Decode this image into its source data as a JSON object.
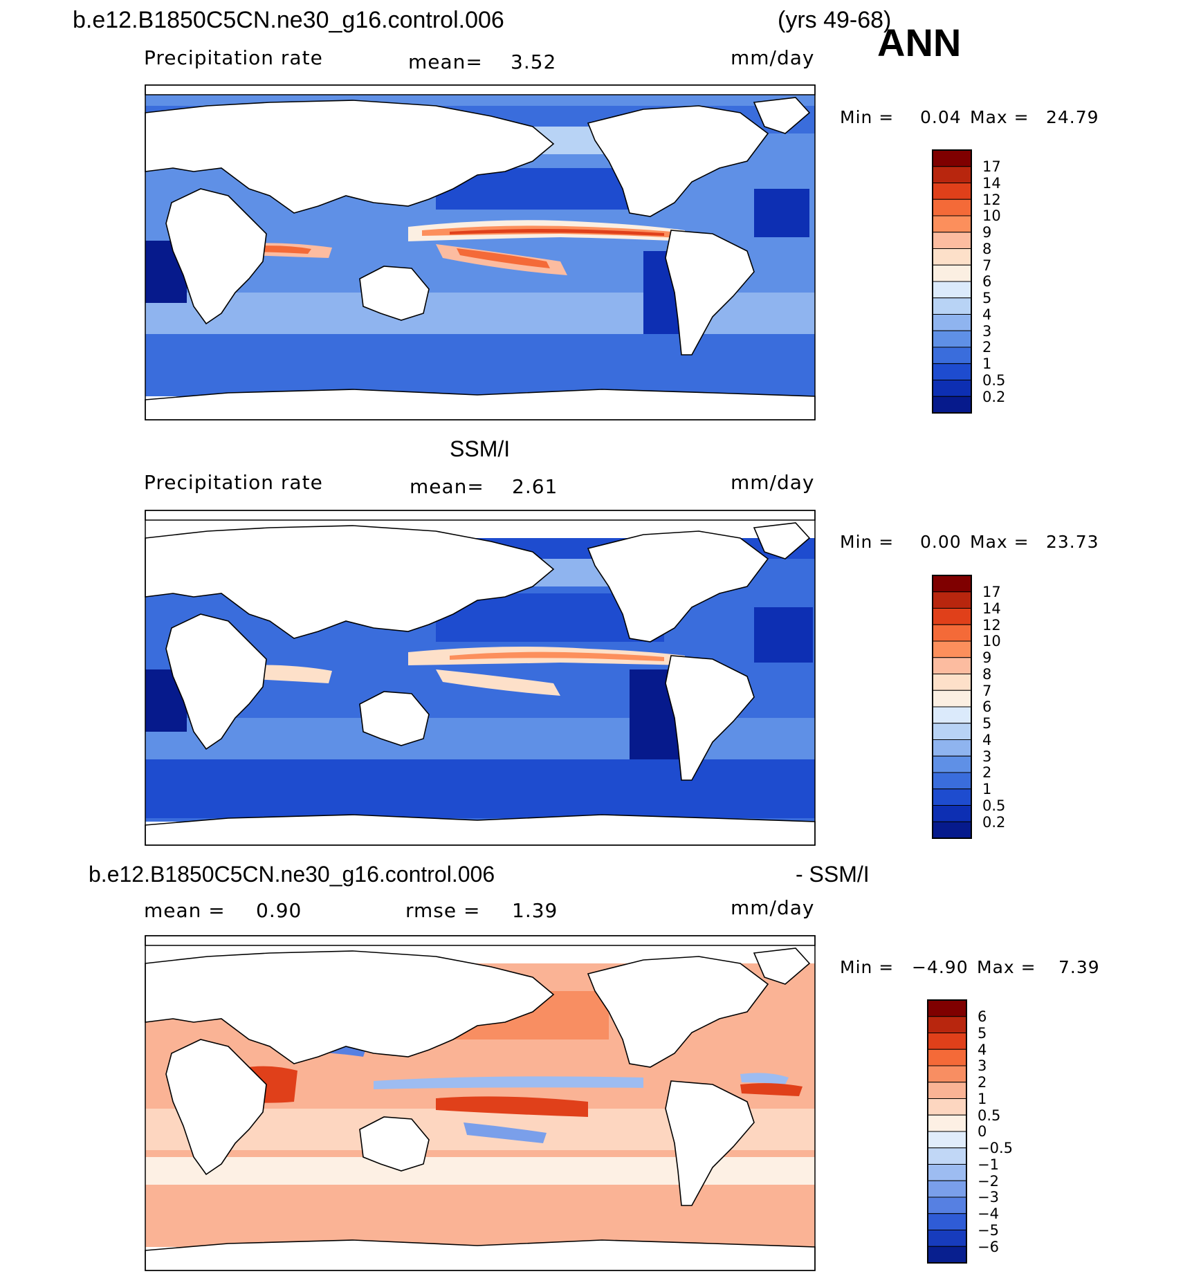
{
  "header": {
    "case_name": "b.e12.B1850C5CN.ne30_g16.control.006",
    "years": "(yrs 49-68)",
    "season": "ANN"
  },
  "panels": [
    {
      "field": "Precipitation rate",
      "stat_label": "mean=",
      "stat_value": "3.52",
      "units": "mm/day",
      "min_label": "Min =",
      "min_value": "0.04",
      "max_label": "Max =",
      "max_value": "24.79"
    },
    {
      "title": "SSM/I",
      "field": "Precipitation rate",
      "stat_label": "mean=",
      "stat_value": "2.61",
      "units": "mm/day",
      "min_label": "Min =",
      "min_value": "0.00",
      "max_label": "Max =",
      "max_value": "23.73"
    },
    {
      "title_left": "b.e12.B1850C5CN.ne30_g16.control.006",
      "title_right": "- SSM/I",
      "stat_label": "mean =",
      "stat_value": "0.90",
      "stat2_label": "rmse =",
      "stat2_value": "1.39",
      "units": "mm/day",
      "min_label": "Min =",
      "min_value": "−4.90",
      "max_label": "Max =",
      "max_value": "7.39"
    }
  ],
  "chart_data": [
    {
      "type": "heatmap",
      "title": "b.e12.B1850C5CN.ne30_g16.control.006 Precipitation rate (yrs 49-68) ANN",
      "units": "mm/day",
      "mean": 3.52,
      "min": 0.04,
      "max": 24.79,
      "colorbar_levels": [
        "17",
        "14",
        "12",
        "10",
        "9",
        "8",
        "7",
        "6",
        "5",
        "4",
        "3",
        "2",
        "1",
        "0.5",
        "0.2"
      ]
    },
    {
      "type": "heatmap",
      "title": "SSM/I Precipitation rate",
      "units": "mm/day",
      "mean": 2.61,
      "min": 0.0,
      "max": 23.73,
      "colorbar_levels": [
        "17",
        "14",
        "12",
        "10",
        "9",
        "8",
        "7",
        "6",
        "5",
        "4",
        "3",
        "2",
        "1",
        "0.5",
        "0.2"
      ]
    },
    {
      "type": "heatmap",
      "title": "b.e12.B1850C5CN.ne30_g16.control.006 - SSM/I",
      "units": "mm/day",
      "mean": 0.9,
      "rmse": 1.39,
      "min": -4.9,
      "max": 7.39,
      "colorbar_levels": [
        "6",
        "5",
        "4",
        "3",
        "2",
        "1",
        "0.5",
        "0",
        "−0.5",
        "−1",
        "−2",
        "−3",
        "−4",
        "−5",
        "−6"
      ]
    }
  ],
  "colors": {
    "abs_scale": [
      "#7f0000",
      "#b8260e",
      "#e0401a",
      "#f46a38",
      "#fc8f5c",
      "#fcbca0",
      "#fde0c9",
      "#fbefe2",
      "#dbeafb",
      "#b8d3f5",
      "#8fb4ef",
      "#5f90e6",
      "#3a6ddc",
      "#1e4ccf",
      "#0d2fb3",
      "#061a8c"
    ],
    "diff_scale": [
      "#7f0000",
      "#b8260e",
      "#e0401a",
      "#f46a38",
      "#f88e62",
      "#fab395",
      "#fdd6c0",
      "#fdf0e4",
      "#e0ecfb",
      "#c1d7f6",
      "#9dbcf1",
      "#7a9fea",
      "#5680e2",
      "#2f5cd6",
      "#173cbd",
      "#081f8f"
    ]
  }
}
